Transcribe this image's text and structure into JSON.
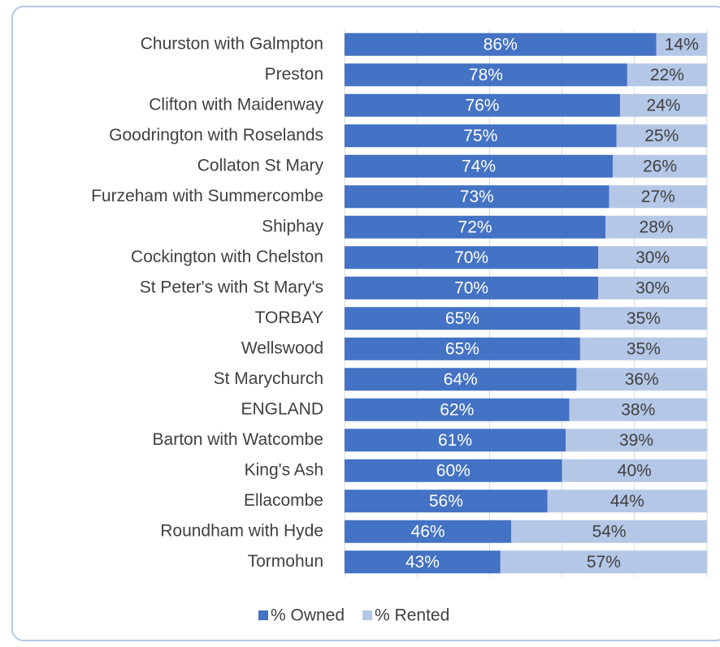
{
  "chart_data": {
    "type": "stacked_barh",
    "categories": [
      "Churston with Galmpton",
      "Preston",
      "Clifton with Maidenway",
      "Goodrington with Roselands",
      "Collaton St Mary",
      "Furzeham with Summercombe",
      "Shiphay",
      "Cockington with Chelston",
      "St Peter's with St Mary's",
      "TORBAY",
      "Wellswood",
      "St Marychurch",
      "ENGLAND",
      "Barton with Watcombe",
      "King's Ash",
      "Ellacombe",
      "Roundham with Hyde",
      "Tormohun"
    ],
    "series": [
      {
        "name": "% Owned",
        "color": "#4472c4",
        "values": [
          86,
          78,
          76,
          75,
          74,
          73,
          72,
          70,
          70,
          65,
          65,
          64,
          62,
          61,
          60,
          56,
          46,
          43
        ],
        "value_labels": [
          "86%",
          "78%",
          "76%",
          "75%",
          "74%",
          "73%",
          "72%",
          "70%",
          "70%",
          "65%",
          "65%",
          "64%",
          "62%",
          "61%",
          "60%",
          "56%",
          "46%",
          "43%"
        ]
      },
      {
        "name": "% Rented",
        "color": "#b4c7e7",
        "values": [
          14,
          22,
          24,
          25,
          26,
          27,
          28,
          30,
          30,
          35,
          35,
          36,
          38,
          39,
          40,
          44,
          54,
          57
        ],
        "value_labels": [
          "14%",
          "22%",
          "24%",
          "25%",
          "26%",
          "27%",
          "28%",
          "30%",
          "30%",
          "35%",
          "35%",
          "36%",
          "38%",
          "39%",
          "40%",
          "44%",
          "54%",
          "57%"
        ]
      }
    ],
    "xlim": [
      0,
      100
    ],
    "xticks": [
      0,
      20,
      40,
      60,
      80,
      100
    ],
    "grid": true,
    "legend": "bottom"
  }
}
